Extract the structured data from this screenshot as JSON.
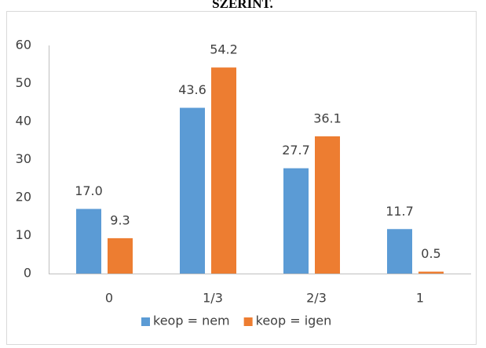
{
  "caption": "SZERINT.",
  "chart_data": {
    "type": "bar",
    "categories": [
      "0",
      "1/3",
      "2/3",
      "1"
    ],
    "series": [
      {
        "name": "keop = nem",
        "color": "#5b9bd5",
        "values": [
          17.0,
          43.6,
          27.7,
          11.7
        ],
        "value_labels": [
          "17.0",
          "43.6",
          "27.7",
          "11.7"
        ]
      },
      {
        "name": "keop = igen",
        "color": "#ed7d31",
        "values": [
          9.3,
          54.2,
          36.1,
          0.5
        ]
      }
    ],
    "ylim": [
      0,
      60
    ],
    "yticks": [
      0,
      10,
      20,
      30,
      40,
      50,
      60
    ],
    "grid": false,
    "legend": "bottom"
  }
}
